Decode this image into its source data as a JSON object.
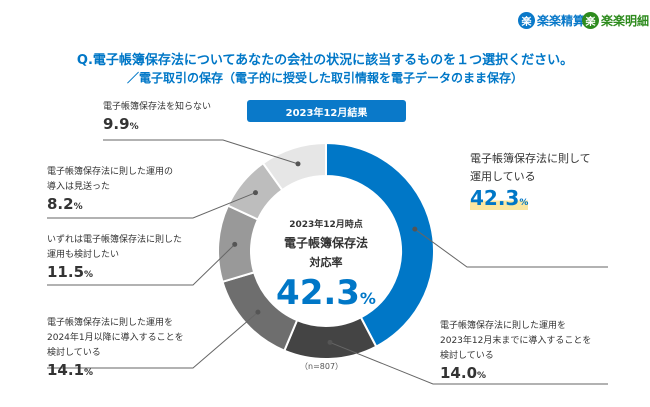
{
  "logos": [
    {
      "mark": "楽",
      "text": "楽楽精算",
      "color": "#0a79c9"
    },
    {
      "mark": "楽",
      "text": "楽楽明細",
      "color": "#2e8b1e"
    }
  ],
  "title": {
    "line1": "Q.電子帳簿保存法についてあなたの会社の状況に該当するものを１つ選択ください。",
    "line2": "／電子取引の保存（電子的に授受した取引情報を電子データのまま保存）"
  },
  "badge": "2023年12月結果",
  "center": {
    "line1": "2023年12月時点",
    "line2": "電子帳簿保存法",
    "line3": "対応率",
    "value": "42.3",
    "unit": "%"
  },
  "sample": "（n=807）",
  "colors": {
    "accent": "#0077c7",
    "highlight": "#fbe7a1"
  },
  "chart_data": {
    "type": "pie",
    "variant": "donut",
    "unit": "%",
    "slices": [
      {
        "label_lines": [
          "電子帳簿保存法に則して",
          "運用している"
        ],
        "value": 42.3,
        "color": "#0077c7"
      },
      {
        "label_lines": [
          "電子帳簿保存法に則した運用を",
          "2023年12月末までに導入することを",
          "検討している"
        ],
        "value": 14.0,
        "color": "#444444"
      },
      {
        "label_lines": [
          "電子帳簿保存法に則した運用を",
          "2024年1月以降に導入することを",
          "検討している"
        ],
        "value": 14.1,
        "color": "#6e6e6e"
      },
      {
        "label_lines": [
          "いずれは電子帳簿保存法に則した",
          "運用も検討したい"
        ],
        "value": 11.5,
        "color": "#999999"
      },
      {
        "label_lines": [
          "電子帳簿保存法に則した運用の",
          "導入は見送った"
        ],
        "value": 8.2,
        "color": "#bdbdbd"
      },
      {
        "label_lines": [
          "電子帳簿保存法を知らない"
        ],
        "value": 9.9,
        "color": "#e6e6e6"
      }
    ]
  }
}
